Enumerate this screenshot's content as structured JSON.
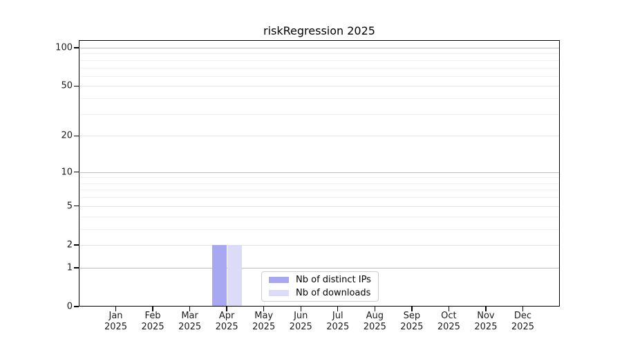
{
  "chart_data": {
    "type": "bar",
    "title": "riskRegression 2025",
    "x": {
      "categories": [
        "Jan",
        "Feb",
        "Mar",
        "Apr",
        "May",
        "Jun",
        "Jul",
        "Aug",
        "Sep",
        "Oct",
        "Nov",
        "Dec"
      ],
      "year": "2025"
    },
    "series": [
      {
        "name": "Nb of distinct IPs",
        "color": "#a8a8f2",
        "values": [
          0,
          0,
          0,
          2,
          0,
          0,
          0,
          0,
          0,
          0,
          0,
          0
        ]
      },
      {
        "name": "Nb of downloads",
        "color": "#dcdcf8",
        "values": [
          0,
          0,
          0,
          2,
          0,
          0,
          0,
          0,
          0,
          0,
          0,
          0
        ]
      }
    ],
    "y_axis": {
      "scale": "log1p",
      "tick_labels": [
        0,
        1,
        2,
        5,
        10,
        20,
        50,
        100
      ],
      "minor_gridlines": [
        3,
        4,
        6,
        7,
        8,
        9,
        30,
        40,
        60,
        70,
        80,
        90
      ],
      "decade_gridlines": [
        1,
        10,
        100
      ],
      "ylim": [
        0,
        115
      ]
    },
    "grid": true,
    "legend": {
      "position": "bottom-center",
      "entries": [
        "Nb of distinct IPs",
        "Nb of downloads"
      ]
    }
  },
  "colors": {
    "background": "#ffffff",
    "spine": "#000000",
    "decade_grid": "#bdbdbd",
    "labeled_grid": "#e4e4e4",
    "minor_grid": "#f0f0f0",
    "legend_border": "#cccccc",
    "bar_distinct_ips": "#a8a8f2",
    "bar_downloads": "#dcdcf8"
  }
}
